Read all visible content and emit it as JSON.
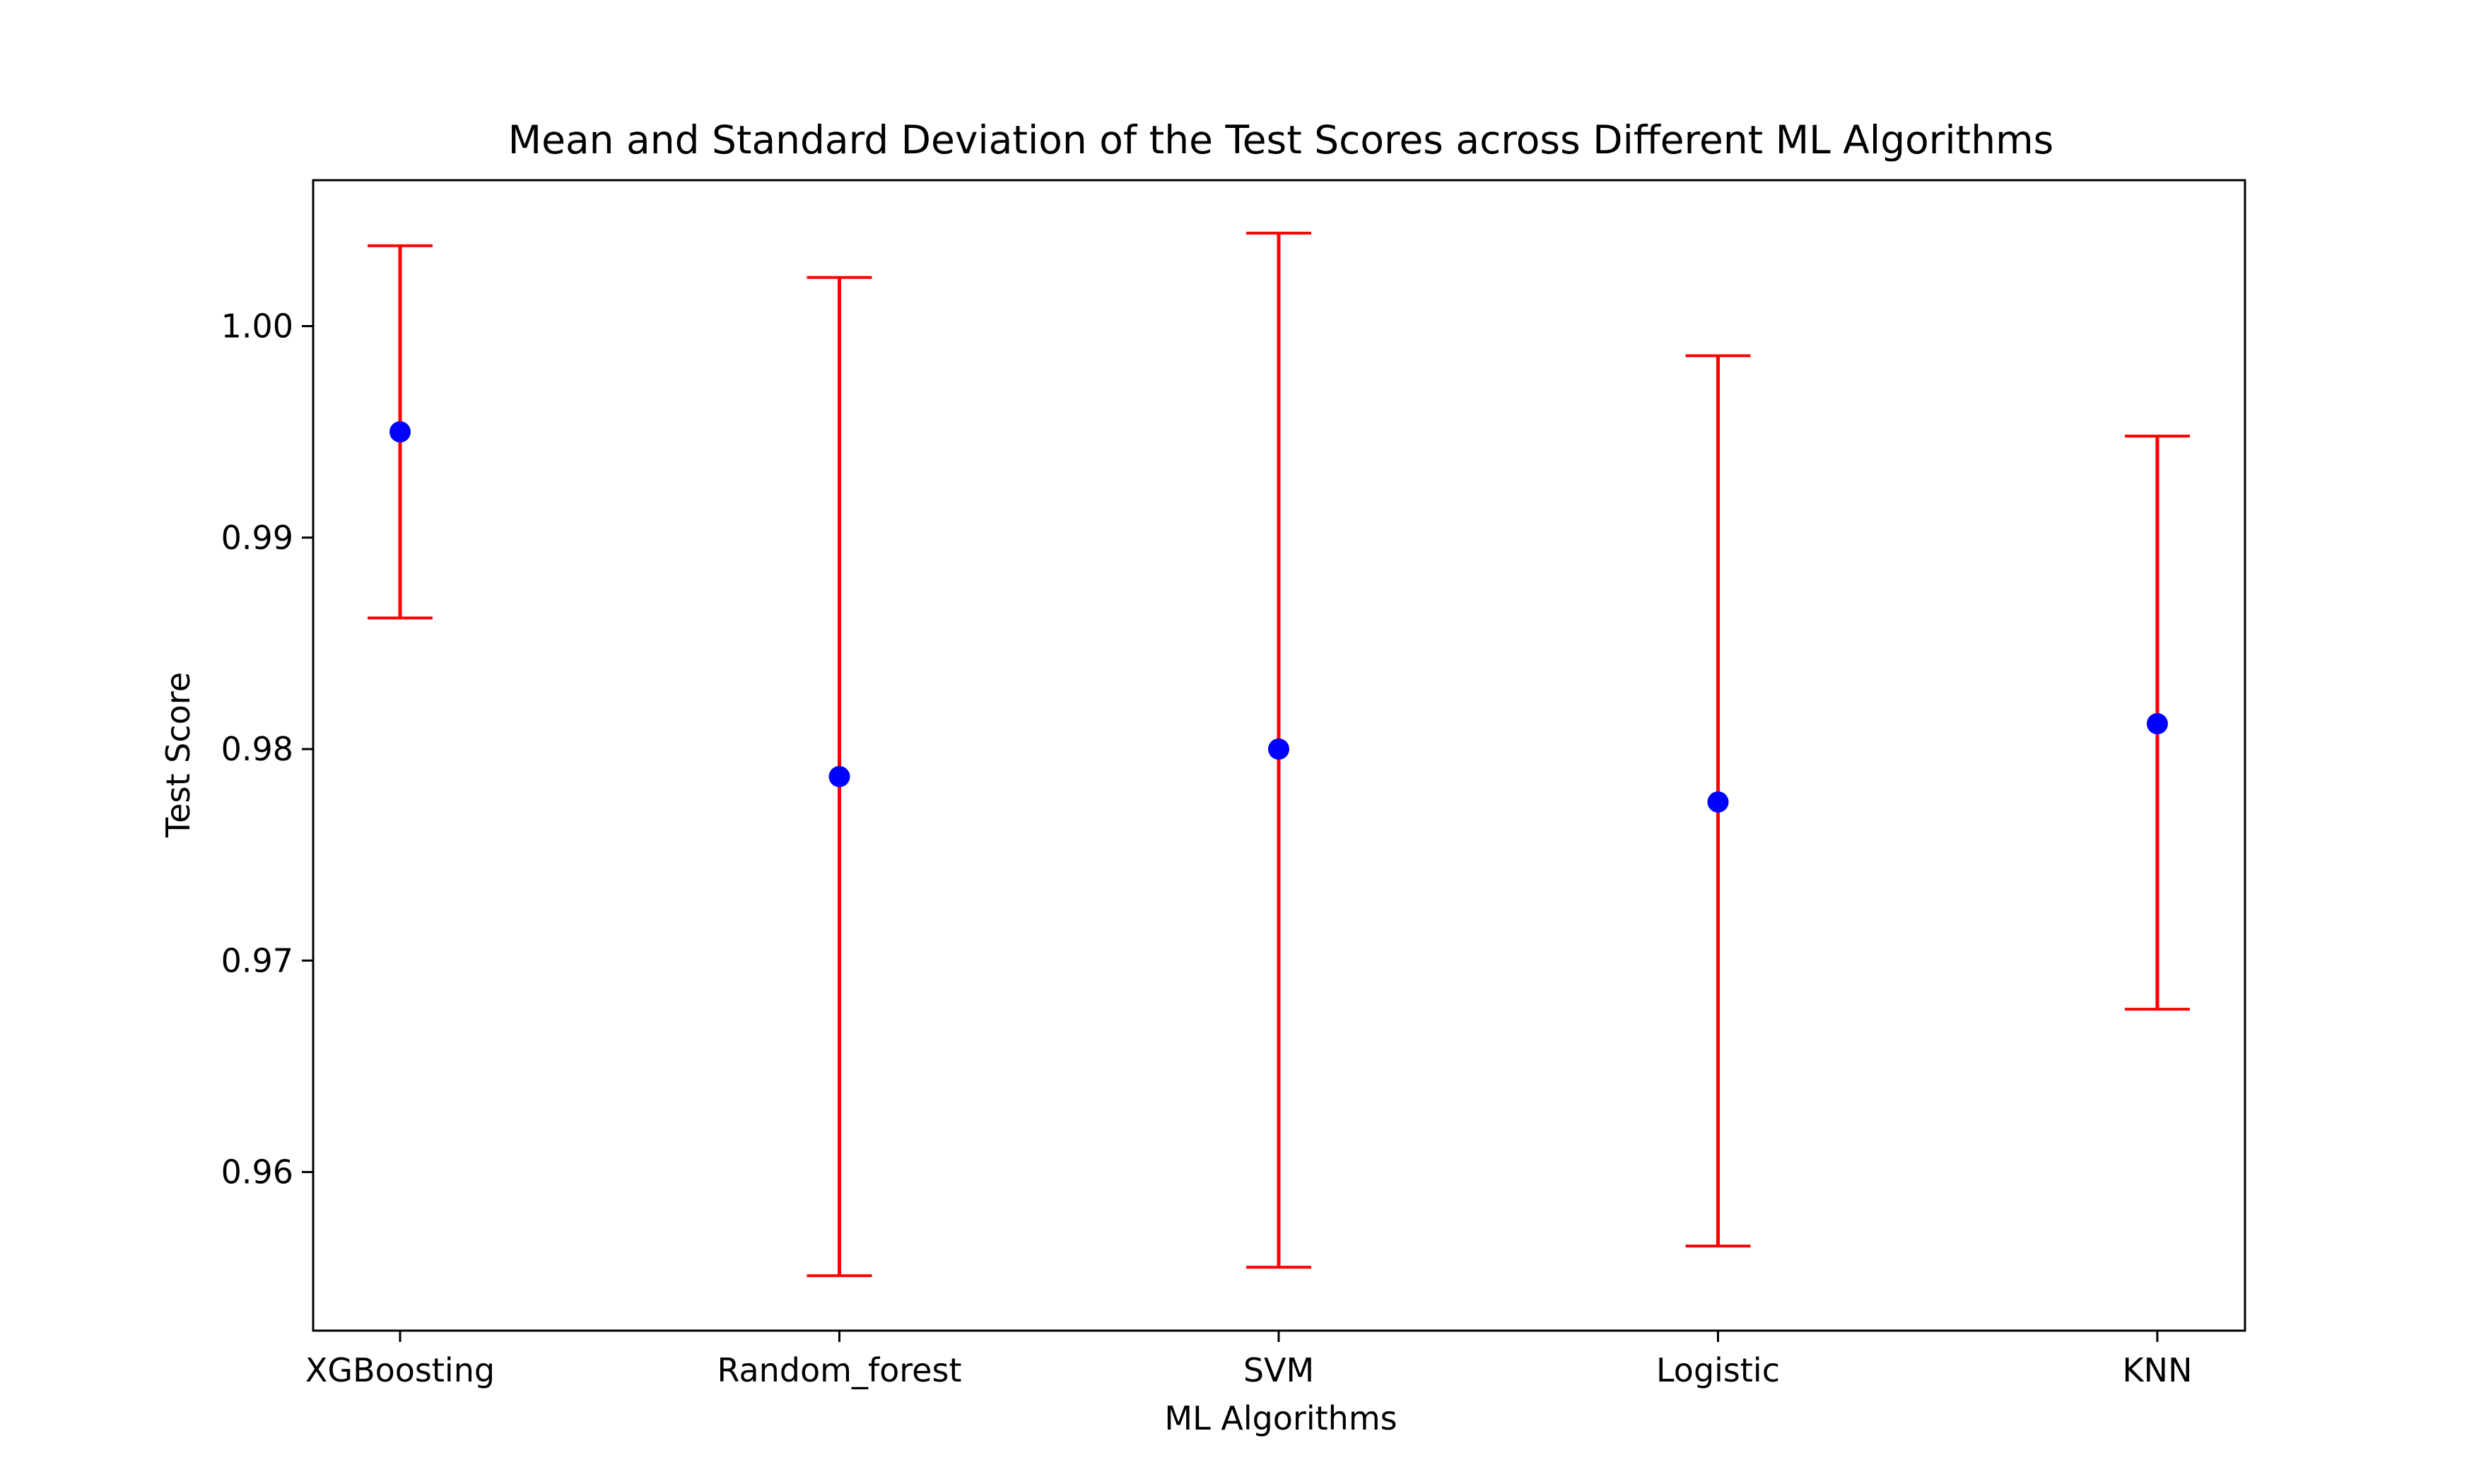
{
  "chart_data": {
    "type": "errorbar",
    "title": "Mean and Standard Deviation of the Test Scores across Different ML Algorithms",
    "xlabel": "ML Algorithms",
    "ylabel": "Test Score",
    "categories": [
      "XGBoosting",
      "Random_forest",
      "SVM",
      "Logistic",
      "KNN"
    ],
    "means": [
      0.995,
      0.9787,
      0.98,
      0.9775,
      0.9812
    ],
    "lower": [
      0.9862,
      0.9551,
      0.9555,
      0.9565,
      0.9677
    ],
    "upper": [
      1.0038,
      1.0023,
      1.0044,
      0.9986,
      0.9948
    ],
    "ylim": [
      0.9525,
      1.0069
    ],
    "yticks": [
      0.96,
      0.97,
      0.98,
      0.99,
      1.0
    ],
    "ytick_labels": [
      "0.96",
      "0.97",
      "0.98",
      "0.99",
      "1.00"
    ],
    "grid": false,
    "colors": {
      "point": "#0000ff",
      "errorbar": "#ff0000",
      "axes": "#000000"
    }
  }
}
